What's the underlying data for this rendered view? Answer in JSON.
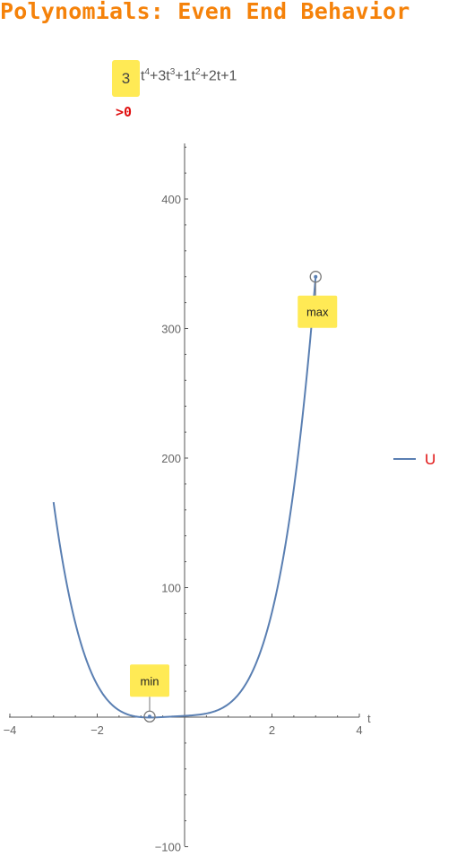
{
  "title": "Polynomials: Even End Behavior",
  "title_color": "#f5820a",
  "coefficient_box": {
    "label": "3",
    "bg_color": "#ffea55"
  },
  "polynomial_rest": {
    "t1": "t",
    "e1": "4",
    "t2": "+3t",
    "e2": "3",
    "t3": "+1t",
    "e3": "2",
    "t4": "+2t+1"
  },
  "condition": {
    "label": ">0",
    "color": "#e01010"
  },
  "chart_data": {
    "type": "line",
    "title": "",
    "xlabel": "t",
    "ylabel": "",
    "xlim": [
      -4,
      4
    ],
    "ylim": [
      -100,
      440
    ],
    "x_ticks": [
      -4,
      -2,
      2,
      4
    ],
    "x_tick_labels": [
      "−4",
      "−2",
      "2",
      "4"
    ],
    "y_ticks": [
      -100,
      100,
      200,
      300,
      400
    ],
    "y_tick_labels": [
      "−100",
      "100",
      "200",
      "300",
      "400"
    ],
    "series": [
      {
        "name": "U",
        "color": "#5a7fb2",
        "domain": [
          -3,
          3
        ],
        "coefficients": {
          "a4": 3,
          "a3": 3,
          "a2": 1,
          "a1": 2,
          "a0": 1
        }
      }
    ],
    "legend": {
      "position": "right",
      "label_color": "#e01010"
    },
    "annotations": [
      {
        "label": "min",
        "x": -0.8,
        "y": 0.5
      },
      {
        "label": "max",
        "x": 3,
        "y": 340
      }
    ],
    "annotation_box_color": "#ffea55",
    "grid": false
  }
}
